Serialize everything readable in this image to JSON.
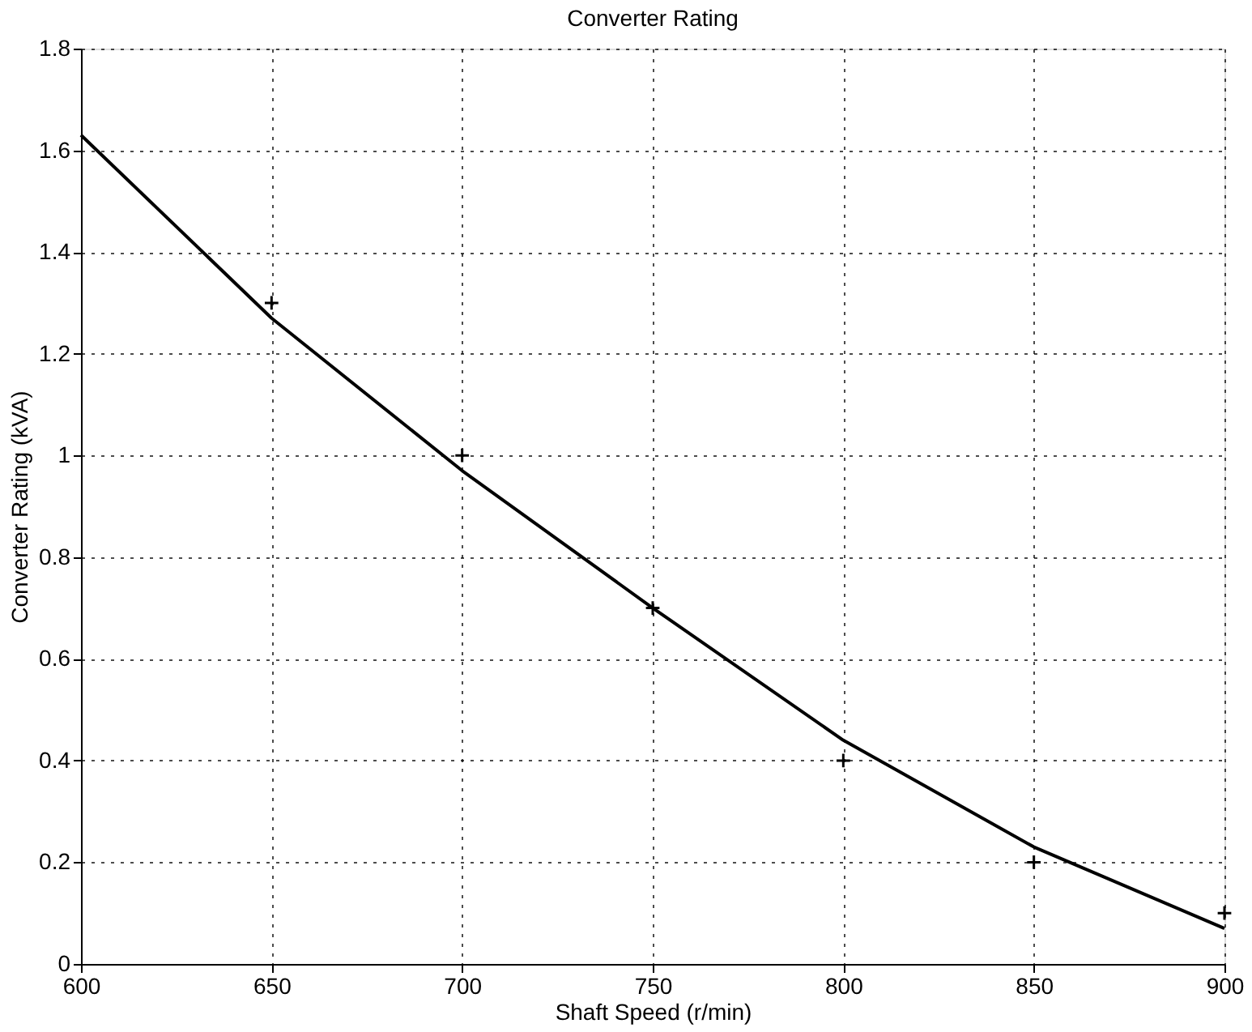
{
  "chart_data": {
    "type": "line",
    "title": "Converter Rating",
    "xlabel": "Shaft Speed (r/min)",
    "ylabel": "Converter Rating (kVA)",
    "xlim": [
      600,
      900
    ],
    "xticks": [
      600,
      650,
      700,
      750,
      800,
      850,
      900
    ],
    "ylim": [
      0,
      1.8
    ],
    "yticks": [
      0,
      0.2,
      0.4,
      0.6,
      0.8,
      1,
      1.2,
      1.4,
      1.6,
      1.8
    ],
    "grid": true,
    "series": [
      {
        "color": "#000000",
        "x": [
          600,
          650,
          700,
          750,
          800,
          850,
          900
        ],
        "values": [
          1.63,
          1.27,
          0.97,
          0.7,
          0.44,
          0.23,
          0.07
        ],
        "marker": "none",
        "line_style": "solid"
      },
      {
        "type": "scatter",
        "color": "#000000",
        "x": [
          650,
          700,
          750,
          800,
          850,
          900
        ],
        "values": [
          1.3,
          1.0,
          0.7,
          0.4,
          0.2,
          0.1
        ],
        "marker": "cross"
      }
    ]
  }
}
